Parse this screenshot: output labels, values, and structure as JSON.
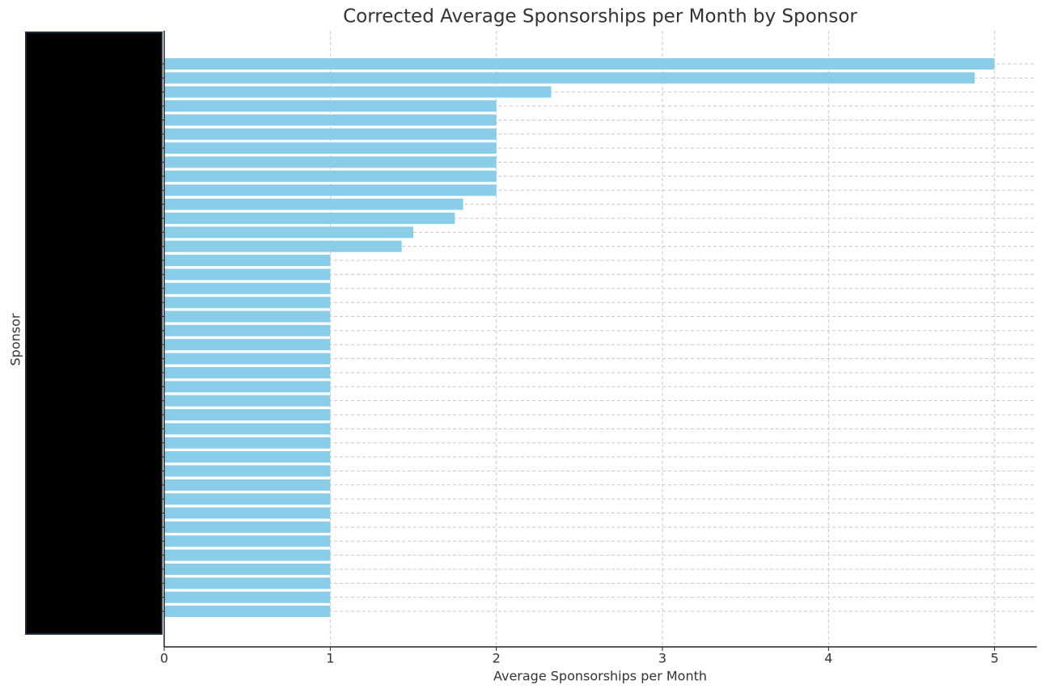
{
  "chart_data": {
    "type": "barh",
    "title": "Corrected Average Sponsorships per Month by Sponsor",
    "x_label": "Average Sponsorships per Month",
    "y_label": "Sponsor",
    "categories": [
      null,
      null,
      null,
      null,
      null,
      null,
      null,
      null,
      null,
      null,
      null,
      null,
      null,
      null,
      null,
      null,
      null,
      null,
      null,
      null,
      null,
      null,
      null,
      null,
      null,
      null,
      null,
      null,
      null,
      null,
      null,
      null,
      null,
      null,
      null,
      null,
      null,
      null,
      null,
      null
    ],
    "values": [
      5,
      4.88,
      2.33,
      2,
      2,
      2,
      2,
      2,
      2,
      2,
      1.8,
      1.75,
      1.5,
      1.43,
      1,
      1,
      1,
      1,
      1,
      1,
      1,
      1,
      1,
      1,
      1,
      1,
      1,
      1,
      1,
      1,
      1,
      1,
      1,
      1,
      1,
      1,
      1,
      1,
      1,
      1
    ],
    "color": "#89cde9",
    "xlim": [
      0,
      5.25
    ],
    "xticks": [
      0,
      1,
      2,
      3,
      4,
      5
    ],
    "grid": true
  }
}
